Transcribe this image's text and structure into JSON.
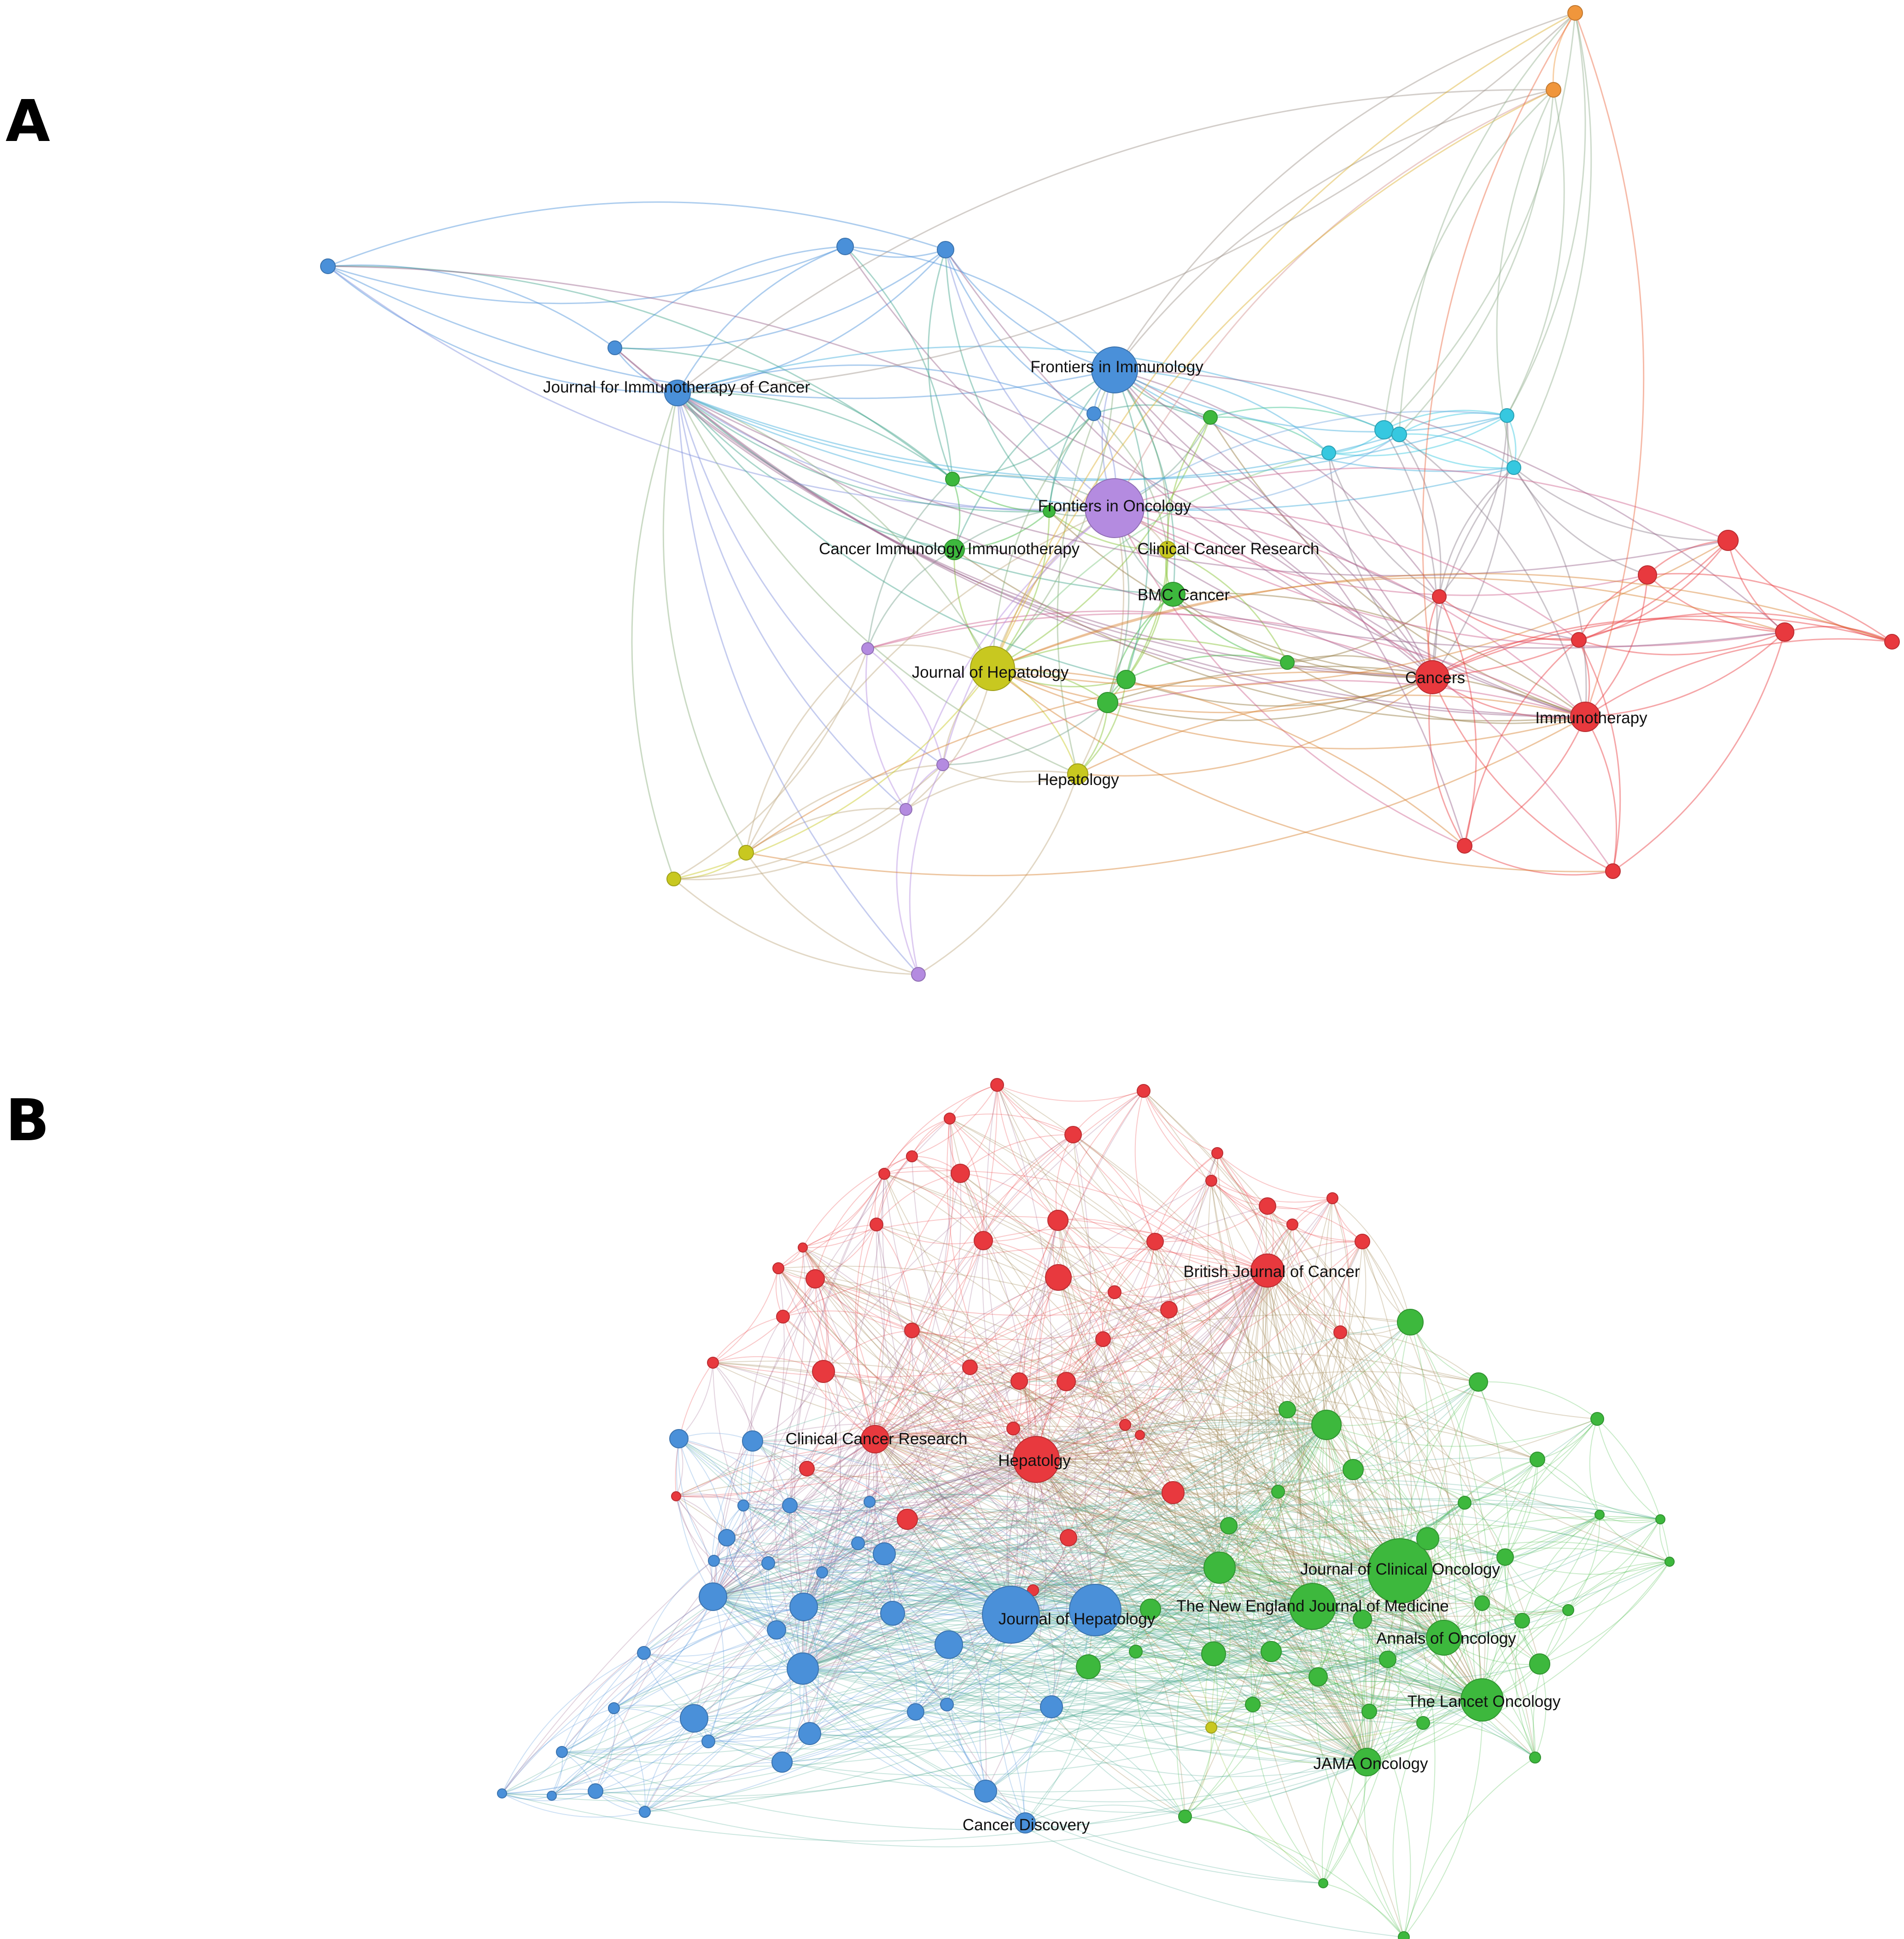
{
  "colors": {
    "blue": "#4a90d9",
    "purple": "#b48be0",
    "green": "#3db83d",
    "yellow": "#c8c820",
    "red": "#e8393e",
    "cyan": "#36c8e0",
    "orange": "#f0963c"
  },
  "panel_a": {
    "letter": "A",
    "labels": {
      "journal_for_immunotherapy_of_cancer": "Journal for Immunotherapy of Cancer",
      "frontiers_in_immunology": "Frontiers in Immunology",
      "frontiers_in_oncology": "Frontiers in Oncology",
      "cancer_immunology_immunotherapy": "Cancer Immunology Immunotherapy",
      "clinical_cancer_research": "Clinical Cancer Research",
      "bmc_cancer": "BMC Cancer",
      "journal_of_hepatology": "Journal of Hepatology",
      "hepatology": "Hepatology",
      "cancers": "Cancers",
      "immunotherapy": "Immunotherapy"
    }
  },
  "panel_b": {
    "letter": "B",
    "labels": {
      "british_journal_of_cancer": "British Journal of Cancer",
      "clinical_cancer_research": "Clinical Cancer Research",
      "hepatolgy": "Hepatolgy",
      "journal_of_clinical_oncology": "Journal of Clinical Oncology",
      "new_england_journal_of_medicine": "The New England Journal of Medicine",
      "journal_of_hepatology": "Journal of Hepatology",
      "annals_of_oncology": "Annals of Oncology",
      "lancet_oncology": "The Lancet Oncology",
      "jama_oncology": "JAMA Oncology",
      "cancer_discovery": "Cancer Discovery"
    }
  }
}
